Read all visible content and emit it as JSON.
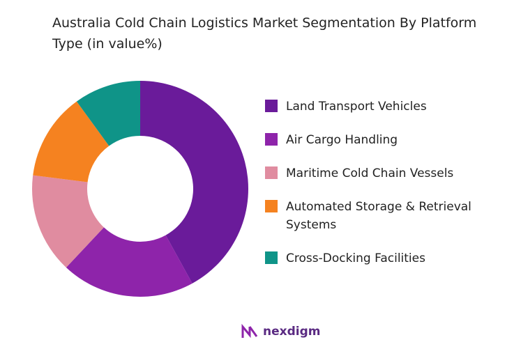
{
  "chart_data": {
    "type": "donut",
    "title": "Australia Cold Chain Logistics Market Segmentation By Platform Type (in value%)",
    "categories": [
      "Land Transport Vehicles",
      "Air Cargo Handling",
      "Maritime Cold Chain Vessels",
      "Automated Storage & Retrieval Systems",
      "Cross-Docking Facilities"
    ],
    "values": [
      42,
      20,
      15,
      13,
      10
    ],
    "colors": [
      "#6a1b9a",
      "#8e24aa",
      "#e08ca0",
      "#f58220",
      "#0f9488"
    ],
    "legend": "right"
  },
  "branding": "nexdigm"
}
